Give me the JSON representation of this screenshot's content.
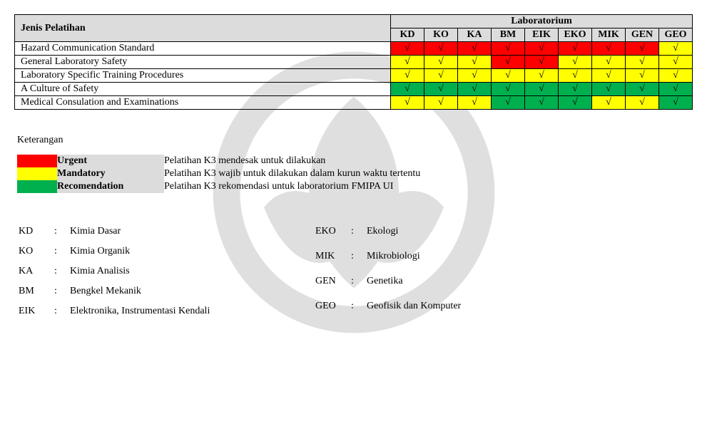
{
  "colors": {
    "urgent": "#ff0000",
    "mandatory": "#ffff00",
    "recommendation": "#00b04e",
    "header_bg": "#dcdcdc",
    "border": "#000000"
  },
  "table": {
    "header_training": "Jenis Pelatihan",
    "header_lab": "Laboratorium",
    "labs": [
      "KD",
      "KO",
      "KA",
      "BM",
      "EIK",
      "EKO",
      "MIK",
      "GEN",
      "GEO"
    ],
    "check": "√",
    "rows": [
      {
        "name": "Hazard Communication Standard",
        "cells": [
          "urgent",
          "urgent",
          "urgent",
          "urgent",
          "urgent",
          "urgent",
          "urgent",
          "urgent",
          "mandatory"
        ]
      },
      {
        "name": "General Laboratory Safety",
        "cells": [
          "mandatory",
          "mandatory",
          "mandatory",
          "urgent",
          "urgent",
          "mandatory",
          "mandatory",
          "mandatory",
          "mandatory"
        ]
      },
      {
        "name": "Laboratory Specific Training Procedures",
        "cells": [
          "mandatory",
          "mandatory",
          "mandatory",
          "mandatory",
          "mandatory",
          "mandatory",
          "mandatory",
          "mandatory",
          "mandatory"
        ]
      },
      {
        "name": "A Culture of Safety",
        "cells": [
          "recommendation",
          "recommendation",
          "recommendation",
          "recommendation",
          "recommendation",
          "recommendation",
          "recommendation",
          "recommendation",
          "recommendation"
        ]
      },
      {
        "name": "Medical Consulation and Examinations",
        "cells": [
          "mandatory",
          "mandatory",
          "mandatory",
          "recommendation",
          "recommendation",
          "recommendation",
          "mandatory",
          "mandatory",
          "recommendation"
        ]
      }
    ]
  },
  "legend": {
    "title": "Keterangan",
    "items": [
      {
        "color": "urgent",
        "label": "Urgent",
        "desc": "Pelatihan K3 mendesak untuk dilakukan"
      },
      {
        "color": "mandatory",
        "label": "Mandatory",
        "desc": "Pelatihan K3 wajib untuk dilakukan dalam kurun waktu tertentu"
      },
      {
        "color": "recommendation",
        "label": "Recomendation",
        "desc": "Pelatihan K3 rekomendasi untuk laboratorium FMIPA UI"
      }
    ]
  },
  "abbrev": {
    "left": [
      {
        "code": "KD",
        "full": "Kimia Dasar"
      },
      {
        "code": "KO",
        "full": "Kimia Organik"
      },
      {
        "code": "KA",
        "full": "Kimia Analisis"
      },
      {
        "code": "BM",
        "full": "Bengkel Mekanik"
      },
      {
        "code": "EIK",
        "full": "Elektronika, Instrumentasi Kendali"
      }
    ],
    "right": [
      {
        "code": "EKO",
        "full": "Ekologi"
      },
      {
        "code": "MIK",
        "full": "Mikrobiologi"
      },
      {
        "code": "GEN",
        "full": "Genetika"
      },
      {
        "code": "GEO",
        "full": "Geofisik dan Komputer"
      }
    ]
  }
}
